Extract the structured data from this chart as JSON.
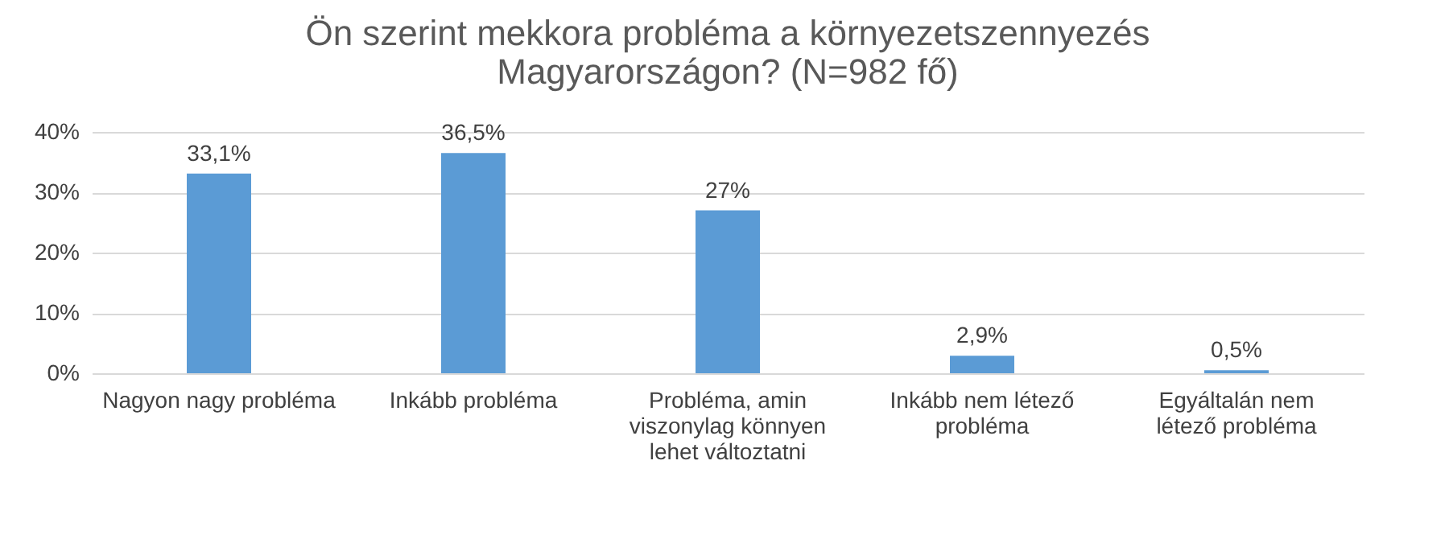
{
  "chart_data": {
    "type": "bar",
    "title": "Ön szerint mekkora probléma a környezetszennyezés Magyarországon? (N=982 fő)",
    "categories": [
      "Nagyon nagy probléma",
      "Inkább probléma",
      "Probléma, amin viszonylag könnyen lehet változtatni",
      "Inkább nem létező probléma",
      "Egyáltalán nem létező probléma"
    ],
    "values": [
      33.1,
      36.5,
      27,
      2.9,
      0.5
    ],
    "value_labels": [
      "33,1%",
      "36,5%",
      "27%",
      "2,9%",
      "0,5%"
    ],
    "color": "#5b9bd5",
    "ylim": [
      0,
      40
    ],
    "yticks": [
      {
        "value": 0,
        "label": "0%"
      },
      {
        "value": 10,
        "label": "10%"
      },
      {
        "value": 20,
        "label": "20%"
      },
      {
        "value": 30,
        "label": "30%"
      },
      {
        "value": 40,
        "label": "40%"
      }
    ],
    "grid": "y"
  }
}
